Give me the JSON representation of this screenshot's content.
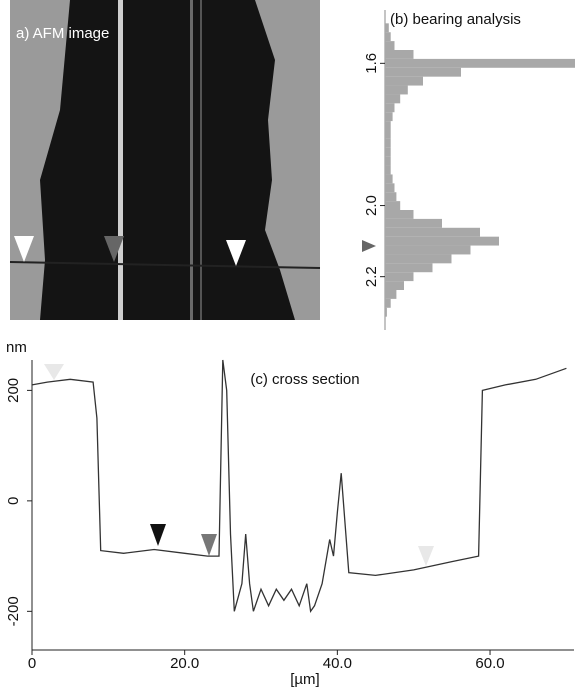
{
  "image": {
    "label": "a) AFM image"
  },
  "chart_data": [
    {
      "type": "histogram-horizontal",
      "title": "(b) bearing analysis",
      "x": [
        1.5,
        1.525,
        1.55,
        1.575,
        1.6,
        1.625,
        1.65,
        1.675,
        1.7,
        1.725,
        1.75,
        1.775,
        1.8,
        1.825,
        1.85,
        1.875,
        1.9,
        1.925,
        1.95,
        1.975,
        2.0,
        2.025,
        2.05,
        2.075,
        2.1,
        2.125,
        2.15,
        2.175,
        2.2,
        2.225,
        2.25,
        2.275,
        2.3
      ],
      "values": [
        2,
        3,
        5,
        15,
        100,
        40,
        20,
        12,
        8,
        5,
        4,
        3,
        3,
        3,
        3,
        3,
        3,
        4,
        5,
        6,
        8,
        15,
        30,
        50,
        60,
        45,
        35,
        25,
        15,
        10,
        6,
        3,
        1
      ],
      "color": "#a8a8a8",
      "ylim": [
        1.45,
        2.35
      ],
      "yticks": [
        1.6,
        {
          "value": 2.0,
          "label": "2.0"
        },
        2.2
      ],
      "xlim": [
        0,
        100
      ]
    },
    {
      "type": "line",
      "title": "(c) cross section",
      "ylabel": "nm",
      "xlabel": "[µm]",
      "x": [
        0,
        2,
        5,
        8,
        8.5,
        9,
        12,
        16,
        20,
        23,
        24.5,
        25,
        25.5,
        26,
        26.5,
        27.5,
        28,
        28.5,
        29,
        30,
        31,
        32,
        33,
        34,
        35,
        36,
        36.5,
        37,
        38,
        39,
        39.5,
        40,
        40.5,
        41,
        41.5,
        45,
        50,
        55,
        58.5,
        59,
        62,
        66,
        70
      ],
      "values": [
        210,
        215,
        220,
        215,
        150,
        -90,
        -95,
        -88,
        -95,
        -100,
        -100,
        255,
        200,
        -60,
        -200,
        -150,
        -60,
        -150,
        -200,
        -160,
        -190,
        -160,
        -180,
        -160,
        -190,
        -150,
        -200,
        -190,
        -150,
        -70,
        -100,
        -20,
        50,
        -40,
        -130,
        -135,
        -125,
        -110,
        -100,
        200,
        210,
        220,
        240
      ],
      "color": "#333333",
      "xlim": [
        0,
        71
      ],
      "xticks": [
        0,
        {
          "value": 20,
          "label": "20.0"
        },
        {
          "value": 40,
          "label": "40.0"
        },
        {
          "value": 60,
          "label": "60.0"
        }
      ],
      "ylim": [
        -270,
        255
      ],
      "yticks": [
        -200,
        0,
        200
      ]
    }
  ]
}
